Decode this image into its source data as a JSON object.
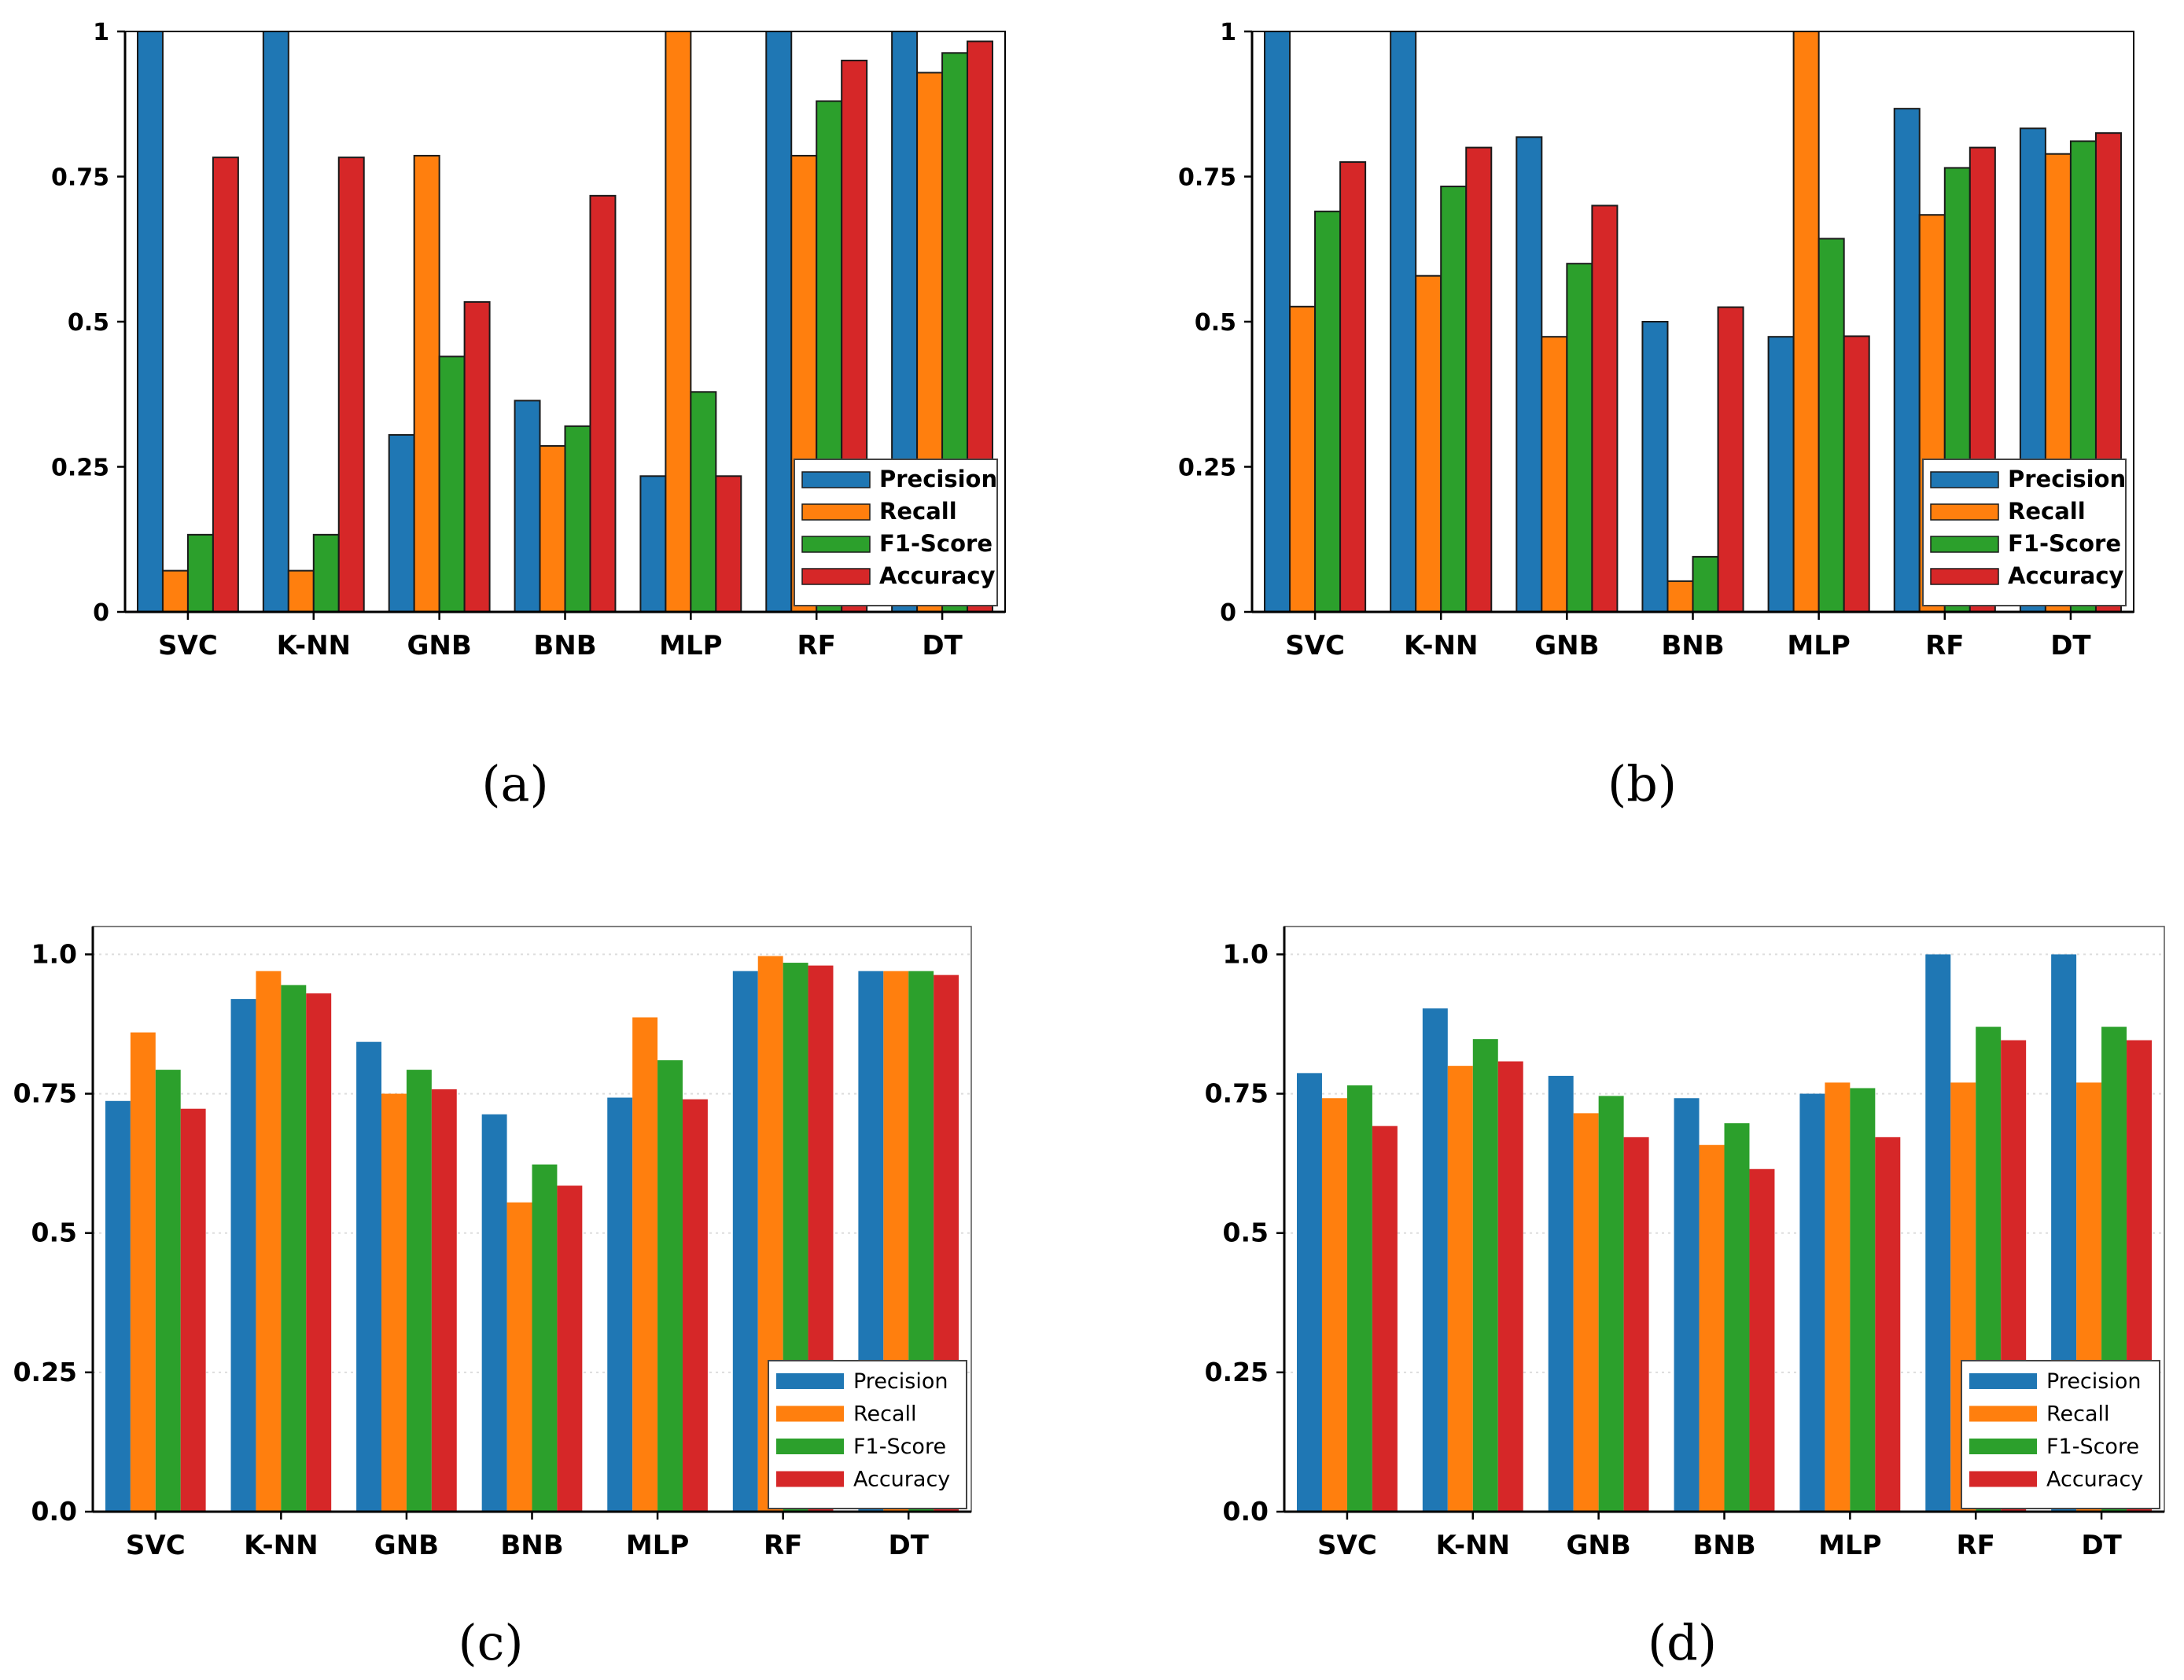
{
  "figure": {
    "colors": {
      "Precision": "#1f77b4",
      "Recall": "#ff7f0e",
      "F1-Score": "#2ca02c",
      "Accuracy": "#d62728"
    }
  },
  "chart_data": [
    {
      "type": "bar",
      "panel": "a",
      "caption": "(a)",
      "categories": [
        "SVC",
        "K-NN",
        "GNB",
        "BNB",
        "MLP",
        "RF",
        "DT"
      ],
      "series": [
        {
          "name": "Precision",
          "values": [
            1.0,
            1.0,
            0.305,
            0.364,
            0.234,
            1.0,
            1.0
          ]
        },
        {
          "name": "Recall",
          "values": [
            0.071,
            0.071,
            0.786,
            0.286,
            1.0,
            0.786,
            0.929
          ]
        },
        {
          "name": "F1-Score",
          "values": [
            0.133,
            0.133,
            0.44,
            0.32,
            0.379,
            0.88,
            0.963
          ]
        },
        {
          "name": "Accuracy",
          "values": [
            0.783,
            0.783,
            0.534,
            0.717,
            0.234,
            0.95,
            0.983
          ]
        }
      ],
      "yticks": [
        "0",
        "0.25",
        "0.5",
        "0.75",
        "1"
      ],
      "ylim": [
        0,
        1
      ],
      "legend": [
        "Precision",
        "Recall",
        "F1-Score",
        "Accuracy"
      ],
      "legend_position": "bottom-right",
      "grid": false,
      "title": "",
      "xlabel": "",
      "ylabel": ""
    },
    {
      "type": "bar",
      "panel": "b",
      "caption": "(b)",
      "categories": [
        "SVC",
        "K-NN",
        "GNB",
        "BNB",
        "MLP",
        "RF",
        "DT"
      ],
      "series": [
        {
          "name": "Precision",
          "values": [
            1.0,
            1.0,
            0.818,
            0.5,
            0.474,
            0.867,
            0.833
          ]
        },
        {
          "name": "Recall",
          "values": [
            0.526,
            0.579,
            0.474,
            0.053,
            1.0,
            0.684,
            0.789
          ]
        },
        {
          "name": "F1-Score",
          "values": [
            0.69,
            0.733,
            0.6,
            0.095,
            0.643,
            0.765,
            0.811
          ]
        },
        {
          "name": "Accuracy",
          "values": [
            0.775,
            0.8,
            0.7,
            0.525,
            0.475,
            0.8,
            0.825
          ]
        }
      ],
      "yticks": [
        "0",
        "0.25",
        "0.5",
        "0.75",
        "1"
      ],
      "ylim": [
        0,
        1
      ],
      "legend": [
        "Precision",
        "Recall",
        "F1-Score",
        "Accuracy"
      ],
      "legend_position": "bottom-right",
      "grid": false,
      "title": "",
      "xlabel": "",
      "ylabel": ""
    },
    {
      "type": "bar",
      "panel": "c",
      "caption": "(c)",
      "categories": [
        "SVC",
        "K-NN",
        "GNB",
        "BNB",
        "MLP",
        "RF",
        "DT"
      ],
      "series": [
        {
          "name": "Precision",
          "values": [
            0.737,
            0.92,
            0.843,
            0.713,
            0.743,
            0.97,
            0.97
          ]
        },
        {
          "name": "Recall",
          "values": [
            0.86,
            0.97,
            0.75,
            0.555,
            0.887,
            0.997,
            0.97
          ]
        },
        {
          "name": "F1-Score",
          "values": [
            0.793,
            0.945,
            0.793,
            0.623,
            0.81,
            0.985,
            0.97
          ]
        },
        {
          "name": "Accuracy",
          "values": [
            0.723,
            0.93,
            0.758,
            0.585,
            0.74,
            0.98,
            0.963
          ]
        }
      ],
      "yticks": [
        "0.0",
        "0.25",
        "0.5",
        "0.75",
        "1.0"
      ],
      "ylim": [
        0,
        1.05
      ],
      "legend": [
        "Precision",
        "Recall",
        "F1-Score",
        "Accuracy"
      ],
      "legend_position": "bottom-right",
      "grid": true,
      "title": "",
      "xlabel": "",
      "ylabel": ""
    },
    {
      "type": "bar",
      "panel": "d",
      "caption": "(d)",
      "categories": [
        "SVC",
        "K-NN",
        "GNB",
        "BNB",
        "MLP",
        "RF",
        "DT"
      ],
      "series": [
        {
          "name": "Precision",
          "values": [
            0.787,
            0.903,
            0.782,
            0.742,
            0.75,
            1.0,
            1.0
          ]
        },
        {
          "name": "Recall",
          "values": [
            0.742,
            0.8,
            0.715,
            0.658,
            0.77,
            0.77,
            0.77
          ]
        },
        {
          "name": "F1-Score",
          "values": [
            0.765,
            0.848,
            0.746,
            0.697,
            0.76,
            0.87,
            0.87
          ]
        },
        {
          "name": "Accuracy",
          "values": [
            0.692,
            0.808,
            0.672,
            0.615,
            0.672,
            0.846,
            0.846
          ]
        }
      ],
      "yticks": [
        "0.0",
        "0.25",
        "0.5",
        "0.75",
        "1.0"
      ],
      "ylim": [
        0,
        1.05
      ],
      "legend": [
        "Precision",
        "Recall",
        "F1-Score",
        "Accuracy"
      ],
      "legend_position": "bottom-right",
      "grid": true,
      "title": "",
      "xlabel": "",
      "ylabel": ""
    }
  ]
}
